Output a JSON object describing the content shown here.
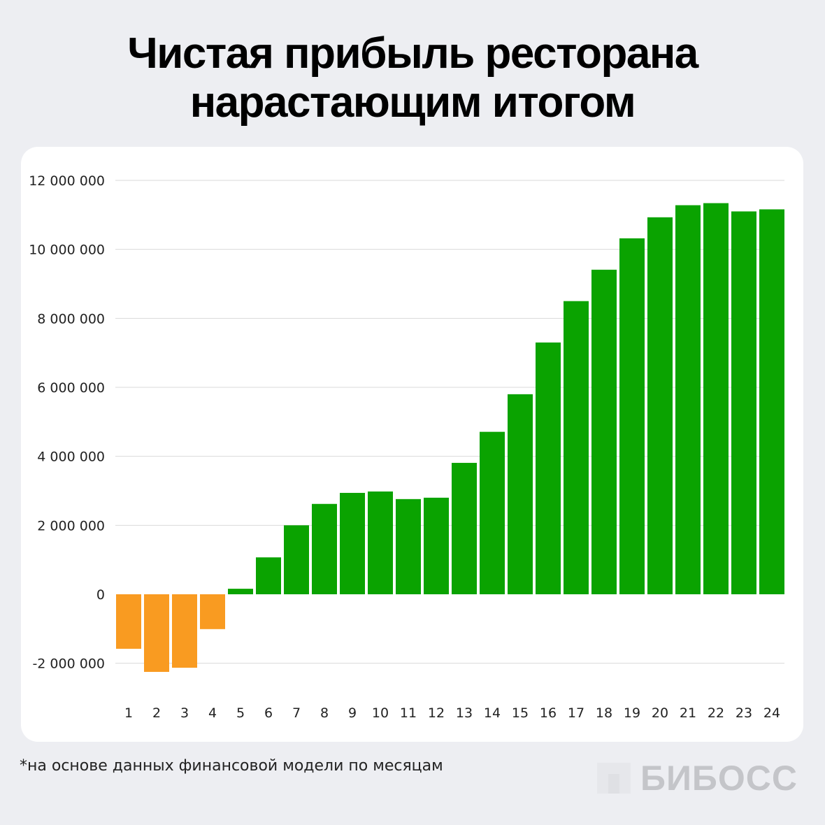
{
  "title_lines": [
    "Чистая прибыль ресторана",
    "нарастающим итогом"
  ],
  "footnote": "*на основе данных финансовой модели по месяцам",
  "logo_text": "БИБОСС",
  "colors": {
    "positive": "#0aa300",
    "negative": "#f99b21",
    "background": "#edeef2",
    "card": "#ffffff"
  },
  "chart_data": {
    "type": "bar",
    "title": "Чистая прибыль ресторана нарастающим итогом",
    "categories": [
      "1",
      "2",
      "3",
      "4",
      "5",
      "6",
      "7",
      "8",
      "9",
      "10",
      "11",
      "12",
      "13",
      "14",
      "15",
      "16",
      "17",
      "18",
      "19",
      "20",
      "21",
      "22",
      "23",
      "24"
    ],
    "values": [
      -1580000,
      -2250000,
      -2130000,
      -1010000,
      160000,
      1070000,
      2000000,
      2620000,
      2940000,
      2980000,
      2760000,
      2800000,
      3810000,
      4710000,
      5800000,
      7300000,
      8500000,
      9410000,
      10320000,
      10930000,
      11280000,
      11340000,
      11100000,
      11160000
    ],
    "ylim": [
      -2000000,
      12000000
    ],
    "yticks": [
      -2000000,
      0,
      2000000,
      4000000,
      6000000,
      8000000,
      10000000,
      12000000
    ],
    "ytick_labels": [
      "-2 000 000",
      "0",
      "2 000 000",
      "4 000 000",
      "6 000 000",
      "8 000 000",
      "10 000 000",
      "12 000 000"
    ],
    "grid": true,
    "xlabel": "",
    "ylabel": ""
  }
}
